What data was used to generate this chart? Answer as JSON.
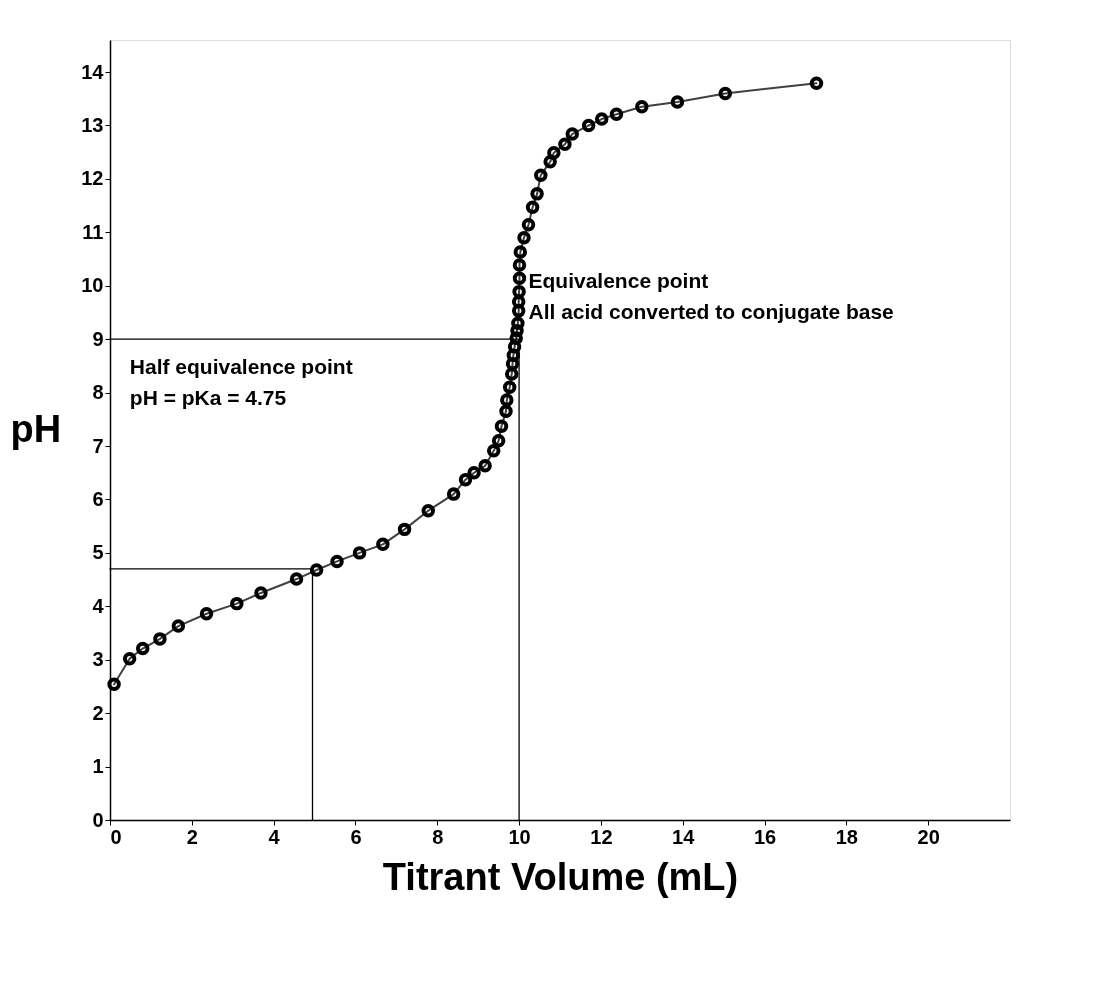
{
  "chart_data": {
    "type": "line",
    "xlabel": "Titrant Volume (mL)",
    "ylabel": "pH",
    "xlim": [
      0,
      22
    ],
    "ylim": [
      0,
      14.6
    ],
    "xticks": [
      0,
      2,
      4,
      6,
      8,
      10,
      12,
      14,
      16,
      18,
      20
    ],
    "yticks": [
      0,
      1,
      2,
      3,
      4,
      5,
      6,
      7,
      8,
      9,
      10,
      11,
      12,
      13,
      14
    ],
    "grid": false,
    "series": [
      {
        "color": "#000000",
        "marker": "circle",
        "x": [
          0.1,
          0.48,
          0.8,
          1.22,
          1.67,
          2.36,
          3.1,
          3.69,
          4.56,
          5.05,
          5.55,
          6.1,
          6.67,
          7.2,
          7.78,
          8.4,
          8.69,
          8.9,
          9.17,
          9.38,
          9.5,
          9.57,
          9.68,
          9.7,
          9.77,
          9.82,
          9.84,
          9.86,
          9.89,
          9.93,
          9.95,
          9.97,
          9.99,
          9.99,
          10.0,
          10.01,
          10.01,
          10.03,
          10.12,
          10.23,
          10.33,
          10.44,
          10.53,
          10.76,
          10.85,
          11.12,
          11.3,
          11.7,
          12.02,
          12.38,
          13.0,
          13.87,
          15.04,
          17.27
        ],
        "values": [
          2.54,
          3.02,
          3.21,
          3.39,
          3.63,
          3.86,
          4.05,
          4.25,
          4.51,
          4.68,
          4.84,
          5.0,
          5.16,
          5.44,
          5.79,
          6.1,
          6.37,
          6.5,
          6.63,
          6.91,
          7.1,
          7.37,
          7.65,
          7.86,
          8.1,
          8.35,
          8.54,
          8.7,
          8.86,
          9.02,
          9.16,
          9.3,
          9.53,
          9.7,
          9.89,
          10.14,
          10.39,
          10.63,
          10.9,
          11.14,
          11.47,
          11.72,
          12.07,
          12.32,
          12.49,
          12.65,
          12.84,
          13.0,
          13.12,
          13.21,
          13.35,
          13.44,
          13.6,
          13.79
        ]
      },
      {
        "color": "#000000",
        "marker": "none",
        "x": [
          0,
          10,
          10
        ],
        "values": [
          9,
          9,
          0
        ]
      },
      {
        "color": "#000000",
        "marker": "none",
        "x": [
          0,
          4.95,
          4.95
        ],
        "values": [
          4.7,
          4.7,
          0
        ]
      }
    ],
    "annotations": [
      "Half equivalence point",
      "pH = pKa = 4.75",
      "Equivalence point",
      "All acid converted to conjugate base"
    ]
  }
}
